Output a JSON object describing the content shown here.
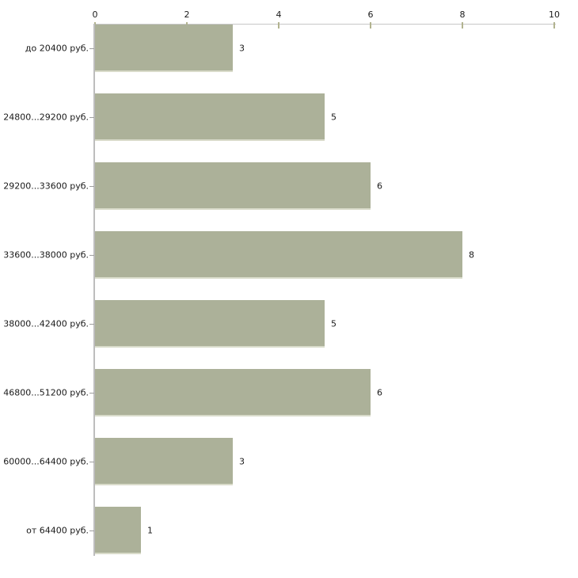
{
  "chart_data": {
    "type": "bar",
    "orientation": "horizontal",
    "title": "",
    "categories": [
      "до 20400 руб.",
      "24800...29200 руб.",
      "29200...33600 руб.",
      "33600...38000 руб.",
      "38000...42400 руб.",
      "46800...51200 руб.",
      "60000...64400 руб.",
      "от 64400 руб."
    ],
    "values": [
      3,
      5,
      6,
      8,
      5,
      6,
      3,
      1
    ],
    "value_labels": [
      "3",
      "5",
      "6",
      "8",
      "5",
      "6",
      "3",
      "1"
    ],
    "x_ticks": [
      "0",
      "2",
      "4",
      "6",
      "8",
      "10"
    ],
    "x_tick_values": [
      0,
      2,
      4,
      6,
      8,
      10
    ],
    "xlim": [
      0,
      10
    ],
    "grid": false,
    "legend": false,
    "axis_position": "top",
    "colors": {
      "bar_fill": "#acb199",
      "bar_bottom_edge": "#d9dbca",
      "x_axis_line": "#c8c8c8",
      "y_axis_line": "#bdbdbd",
      "x_tick_mark": "#b2b38f",
      "category_tick_mark": "#9e9e9e",
      "label_text": "#1a1a1a",
      "background": "#ffffff"
    }
  }
}
